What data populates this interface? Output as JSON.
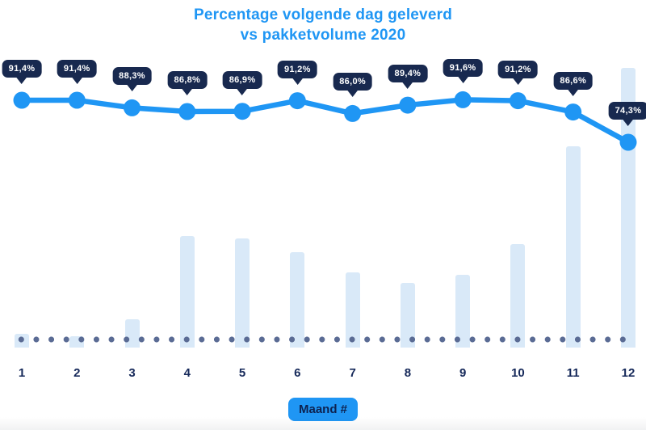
{
  "title": {
    "line1": "Percentage volgende dag geleverd",
    "line2": "vs pakketvolume 2020"
  },
  "x_axis": {
    "label": "Maand #",
    "months": [
      "1",
      "2",
      "3",
      "4",
      "5",
      "6",
      "7",
      "8",
      "9",
      "10",
      "11",
      "12"
    ]
  },
  "colors": {
    "accent_blue": "#1F96F4",
    "badge_navy": "#18294F",
    "month_label_navy": "#16295A",
    "bar_fill": "#D9E9F8",
    "baseline_dot_gray": "#5A6B94",
    "badge_text_white": "#FFFFFF"
  },
  "chart_data": {
    "type": "line",
    "combo_types": [
      "line",
      "bar"
    ],
    "title": "Percentage volgende dag geleverd vs pakketvolume 2020",
    "xlabel": "Maand #",
    "ylabel": "",
    "categories": [
      1,
      2,
      3,
      4,
      5,
      6,
      7,
      8,
      9,
      10,
      11,
      12
    ],
    "series": [
      {
        "name": "Percentage volgende dag geleverd",
        "type": "line",
        "unit": "%",
        "values": [
          91.4,
          91.4,
          88.3,
          86.8,
          86.9,
          91.2,
          86.0,
          89.4,
          91.6,
          91.2,
          86.6,
          74.3
        ],
        "labels": [
          "91,4%",
          "91,4%",
          "88,3%",
          "86,8%",
          "86,9%",
          "91,2%",
          "86,0%",
          "89,4%",
          "91,6%",
          "91,2%",
          "86,6%",
          "74,3%"
        ]
      },
      {
        "name": "Pakketvolume 2020",
        "type": "bar",
        "unit": "relative height, % of max (no value axis shown)",
        "values": [
          5,
          4,
          10,
          40,
          39,
          34,
          27,
          23,
          26,
          37,
          72,
          100
        ]
      }
    ],
    "legend": "none",
    "grid": false,
    "value_axis_visible": false,
    "data_labels": "line series labeled with dark speech-bubble badges",
    "baseline": "dotted horizontal line at x-axis"
  }
}
